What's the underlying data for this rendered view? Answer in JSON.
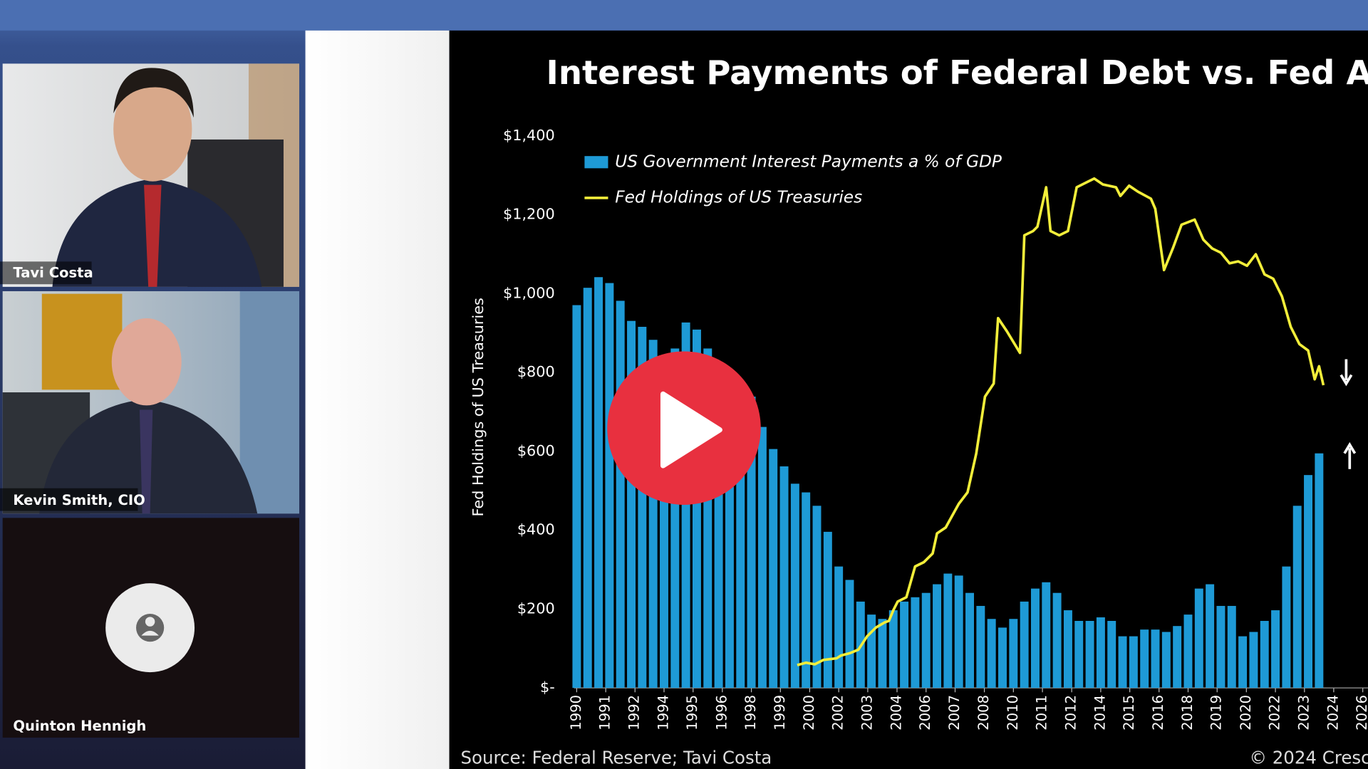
{
  "participants": [
    {
      "name": "Tavi Costa"
    },
    {
      "name": "Kevin Smith, CIO"
    },
    {
      "name": "Quinton Hennigh"
    }
  ],
  "chart_data": {
    "type": "bar",
    "title": "Interest Payments of Federal Debt vs. Fed Asset",
    "y_label": "Fed Holdings of US Treasuries",
    "source": "Source: Federal Reserve; Tavi Costa",
    "copyright": "© 2024 Cresc",
    "ylim": [
      0,
      1400
    ],
    "yticks": [
      {
        "value": 0,
        "label": "$-"
      },
      {
        "value": 200,
        "label": "$200"
      },
      {
        "value": 400,
        "label": "$400"
      },
      {
        "value": 600,
        "label": "$600"
      },
      {
        "value": 800,
        "label": "$800"
      },
      {
        "value": 1000,
        "label": "$1,000"
      },
      {
        "value": 1200,
        "label": "$1,200"
      },
      {
        "value": 1400,
        "label": "$1,400"
      }
    ],
    "xlim": [
      1989.56,
      2026.24
    ],
    "xticks": [
      1990,
      {
        "value": 1991.33,
        "label": "1991"
      },
      {
        "value": 1992.67,
        "label": "1992"
      },
      1994,
      {
        "value": 1995.33,
        "label": "1995"
      },
      {
        "value": 1996.67,
        "label": "1996"
      },
      1998,
      {
        "value": 1999.33,
        "label": "1999"
      },
      {
        "value": 2000.67,
        "label": "2000"
      },
      2002,
      {
        "value": 2003.33,
        "label": "2003"
      },
      {
        "value": 2004.67,
        "label": "2004"
      },
      2006,
      {
        "value": 2007.33,
        "label": "2007"
      },
      {
        "value": 2008.67,
        "label": "2008"
      },
      2010,
      {
        "value": 2011.33,
        "label": "2011"
      },
      {
        "value": 2012.67,
        "label": "2012"
      },
      2014,
      {
        "value": 2015.33,
        "label": "2015"
      },
      {
        "value": 2016.67,
        "label": "2016"
      },
      2018,
      {
        "value": 2019.33,
        "label": "2019"
      },
      {
        "value": 2020.67,
        "label": "2020"
      },
      2022,
      {
        "value": 2023.33,
        "label": "2023"
      },
      {
        "value": 2024.67,
        "label": "2024"
      },
      2026
    ],
    "series": [
      {
        "name": "US Government Interest Payments  a % of GDP",
        "type": "bar",
        "color": "#1e9ad6",
        "x": [
          1990,
          1990.5,
          1991,
          1991.5,
          1992,
          1992.5,
          1993,
          1993.5,
          1994,
          1994.5,
          1995,
          1995.5,
          1996,
          1996.5,
          1997,
          1997.5,
          1998,
          1998.5,
          1999,
          1999.5,
          2000,
          2000.5,
          2001,
          2001.5,
          2002,
          2002.5,
          2003,
          2003.5,
          2004,
          2004.5,
          2005,
          2005.5,
          2006,
          2006.5,
          2007,
          2007.5,
          2008,
          2008.5,
          2009,
          2009.5,
          2010,
          2010.5,
          2011,
          2011.5,
          2012,
          2012.5,
          2013,
          2013.5,
          2014,
          2014.5,
          2015,
          2015.5,
          2016,
          2016.5,
          2017,
          2017.5,
          2018,
          2018.5,
          2019,
          2019.5,
          2020,
          2020.5,
          2021,
          2021.5,
          2022,
          2022.5,
          2023,
          2023.5,
          2024
        ],
        "values": [
          971,
          1015,
          1042,
          1027,
          982,
          931,
          916,
          883,
          843,
          861,
          927,
          909,
          861,
          827,
          794,
          761,
          739,
          662,
          606,
          562,
          518,
          496,
          462,
          396,
          308,
          274,
          219,
          186,
          175,
          197,
          219,
          230,
          241,
          263,
          290,
          285,
          241,
          208,
          175,
          153,
          175,
          219,
          252,
          268,
          241,
          197,
          170,
          170,
          179,
          170,
          131,
          131,
          148,
          148,
          142,
          157,
          186,
          252,
          263,
          208,
          208,
          131,
          142,
          170,
          197,
          308,
          462,
          540,
          595
        ]
      },
      {
        "name": "Fed Holdings of US Treasuries",
        "type": "line",
        "color": "#f2ee3a",
        "x": [
          2000.1,
          2000.5,
          2000.9,
          2001.3,
          2001.9,
          2002.1,
          2002.5,
          2002.9,
          2003.3,
          2003.7,
          2004.1,
          2004.3,
          2004.5,
          2004.7,
          2005.1,
          2005.5,
          2005.9,
          2006.3,
          2006.5,
          2006.9,
          2007.1,
          2007.5,
          2007.9,
          2008.3,
          2008.7,
          2009.1,
          2009.3,
          2009.7,
          2010.3,
          2010.5,
          2010.9,
          2011.1,
          2011.5,
          2011.7,
          2012.1,
          2012.5,
          2012.9,
          2013.3,
          2013.7,
          2014.1,
          2014.7,
          2014.9,
          2015.3,
          2015.7,
          2016.3,
          2016.5,
          2016.9,
          2017.3,
          2017.7,
          2018.3,
          2018.7,
          2019.1,
          2019.5,
          2019.9,
          2020.3,
          2020.7,
          2021.1,
          2021.5,
          2021.9,
          2022.3,
          2022.7,
          2023.1,
          2023.5,
          2023.8,
          2024.0,
          2024.2
        ],
        "values": [
          58,
          64,
          60,
          71,
          75,
          82,
          88,
          97,
          131,
          153,
          166,
          170,
          197,
          219,
          230,
          308,
          319,
          341,
          392,
          407,
          427,
          467,
          496,
          595,
          739,
          772,
          938,
          905,
          850,
          1148,
          1159,
          1170,
          1270,
          1159,
          1148,
          1159,
          1270,
          1281,
          1292,
          1277,
          1270,
          1248,
          1274,
          1259,
          1241,
          1215,
          1060,
          1115,
          1175,
          1188,
          1137,
          1115,
          1104,
          1077,
          1082,
          1071,
          1100,
          1049,
          1038,
          993,
          916,
          872,
          856,
          783,
          816,
          768
        ]
      }
    ]
  }
}
